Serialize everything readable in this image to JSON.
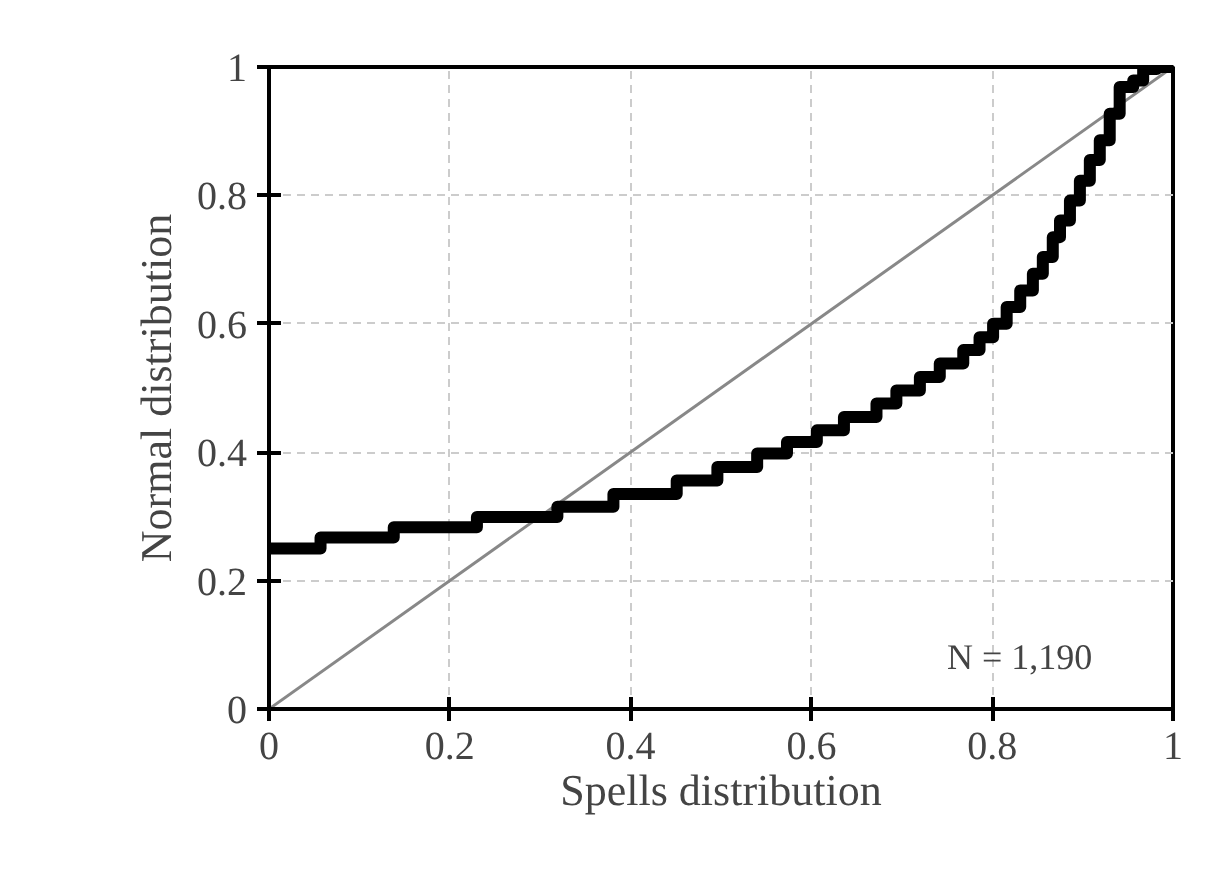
{
  "chart_data": {
    "type": "step",
    "xlabel": "Spells distribution",
    "ylabel": "Normal distribution",
    "xlim": [
      0,
      1
    ],
    "ylim": [
      0,
      1
    ],
    "xticks": [
      0,
      0.2,
      0.4,
      0.6,
      0.8,
      1
    ],
    "yticks": [
      0,
      0.2,
      0.4,
      0.6,
      0.8,
      1
    ],
    "grid": true,
    "annotations": [
      "N = 1,190"
    ],
    "series": [
      {
        "color": "#000000",
        "x": [
          0,
          0.057,
          0.138,
          0.23,
          0.319,
          0.381,
          0.451,
          0.496,
          0.54,
          0.573,
          0.606,
          0.636,
          0.672,
          0.694,
          0.72,
          0.742,
          0.768,
          0.786,
          0.801,
          0.816,
          0.831,
          0.845,
          0.856,
          0.867,
          0.875,
          0.886,
          0.897,
          0.908,
          0.919,
          0.93,
          0.941,
          0.956,
          0.967,
          0.982,
          1
        ],
        "values": [
          0.25,
          0.267,
          0.283,
          0.299,
          0.315,
          0.335,
          0.356,
          0.377,
          0.398,
          0.416,
          0.434,
          0.455,
          0.476,
          0.496,
          0.517,
          0.538,
          0.559,
          0.579,
          0.6,
          0.626,
          0.652,
          0.678,
          0.704,
          0.735,
          0.761,
          0.792,
          0.823,
          0.855,
          0.886,
          0.927,
          0.969,
          0.979,
          0.997,
          1,
          1
        ]
      },
      {
        "type": "line",
        "color": "#888888",
        "x": [
          0,
          1
        ],
        "values": [
          0,
          1
        ]
      }
    ]
  }
}
